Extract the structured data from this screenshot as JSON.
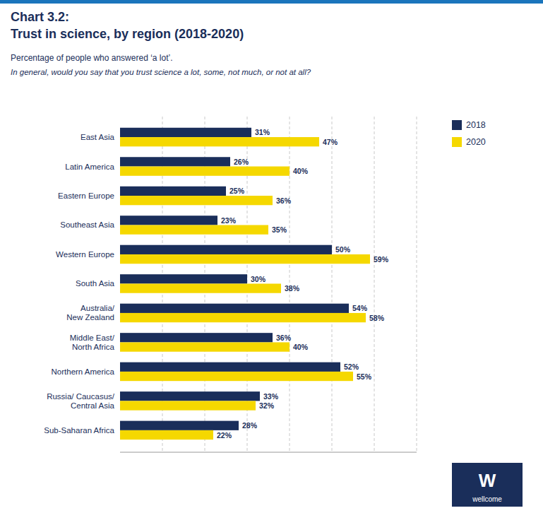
{
  "chart_data": {
    "type": "bar",
    "orientation": "horizontal",
    "title": "Chart 3.2:\nTrust in science, by region (2018-2020)",
    "subtitle": "Percentage of people who answered ‘a lot’.",
    "annotations": [
      "In general, would you say that you trust science a lot, some, not much, or not at all?",
      "W",
      "wellcome"
    ],
    "categories": [
      "Sub-Saharan Africa",
      "Russia/ Caucasus/\nCentral Asia",
      "Northern America",
      "Middle East/\nNorth Africa",
      "Australia/\nNew Zealand",
      "South Asia",
      "Western Europe",
      "Southeast Asia",
      "Eastern Europe",
      "Latin America",
      "East Asia"
    ],
    "series": [
      {
        "name": "2018",
        "color": "#1a2e5a",
        "values": [
          28,
          33,
          52,
          36,
          54,
          30,
          50,
          23,
          25,
          26,
          31
        ],
        "value_labels": [
          "28%",
          "33%",
          "52%",
          "36%",
          "54%",
          "30%",
          "50%",
          "23%",
          "25%",
          "26%",
          "31%"
        ]
      },
      {
        "name": "2020",
        "color": "#f5d800",
        "values": [
          22,
          32,
          55,
          40,
          58,
          38,
          59,
          35,
          36,
          40,
          47
        ],
        "value_labels": [
          "22%",
          "32%",
          "55%",
          "40%",
          "58%",
          "38%",
          "59%",
          "35%",
          "36%",
          "40%",
          "47%"
        ]
      }
    ],
    "xlim": [
      0,
      70
    ],
    "xticks": [
      10,
      20,
      30,
      40,
      50,
      60,
      70
    ],
    "grid": true,
    "legend": "upper right",
    "data_labels": true,
    "tick_labels": "y"
  }
}
